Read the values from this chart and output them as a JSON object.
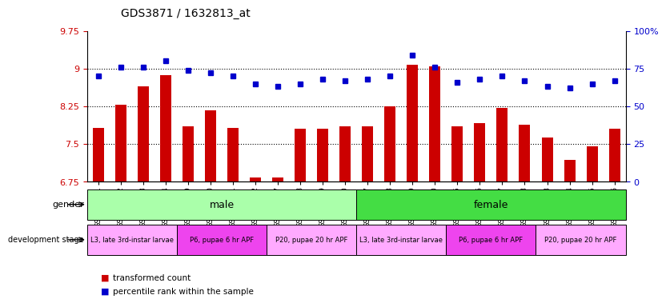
{
  "title": "GDS3871 / 1632813_at",
  "samples": [
    "GSM572821",
    "GSM572822",
    "GSM572823",
    "GSM572824",
    "GSM572829",
    "GSM572830",
    "GSM572831",
    "GSM572832",
    "GSM572837",
    "GSM572838",
    "GSM572839",
    "GSM572840",
    "GSM572817",
    "GSM572818",
    "GSM572819",
    "GSM572820",
    "GSM572825",
    "GSM572826",
    "GSM572827",
    "GSM572828",
    "GSM572833",
    "GSM572834",
    "GSM572835",
    "GSM572836"
  ],
  "bar_values": [
    7.82,
    8.28,
    8.65,
    8.87,
    7.85,
    8.17,
    7.82,
    6.83,
    6.83,
    7.8,
    7.8,
    7.85,
    7.85,
    8.25,
    9.07,
    9.05,
    7.85,
    7.92,
    8.22,
    7.88,
    7.62,
    7.18,
    7.45,
    7.8
  ],
  "dot_values": [
    70,
    76,
    76,
    80,
    74,
    72,
    70,
    65,
    63,
    65,
    68,
    67,
    68,
    70,
    84,
    76,
    66,
    68,
    70,
    67,
    63,
    62,
    65,
    67
  ],
  "ylim_left": [
    6.75,
    9.75
  ],
  "ylim_right": [
    0,
    100
  ],
  "yticks_left": [
    6.75,
    7.5,
    8.25,
    9.0,
    9.75
  ],
  "ytick_labels_left": [
    "6.75",
    "7.5",
    "8.25",
    "9",
    "9.75"
  ],
  "yticks_right": [
    0,
    25,
    50,
    75,
    100
  ],
  "ytick_labels_right": [
    "0",
    "25",
    "50",
    "75",
    "100%"
  ],
  "bar_color": "#cc0000",
  "dot_color": "#0000cc",
  "gender_regions": [
    {
      "label": "male",
      "start": 0,
      "end": 12,
      "color": "#aaffaa"
    },
    {
      "label": "female",
      "start": 12,
      "end": 24,
      "color": "#44dd44"
    }
  ],
  "dev_stage_regions": [
    {
      "label": "L3, late 3rd-instar larvae",
      "start": 0,
      "end": 4,
      "color": "#ffaaff"
    },
    {
      "label": "P6, pupae 6 hr APF",
      "start": 4,
      "end": 8,
      "color": "#ee44ee"
    },
    {
      "label": "P20, pupae 20 hr APF",
      "start": 8,
      "end": 12,
      "color": "#ffaaff"
    },
    {
      "label": "L3, late 3rd-instar larvae",
      "start": 12,
      "end": 16,
      "color": "#ffaaff"
    },
    {
      "label": "P6, pupae 6 hr APF",
      "start": 16,
      "end": 20,
      "color": "#ee44ee"
    },
    {
      "label": "P20, pupae 20 hr APF",
      "start": 20,
      "end": 24,
      "color": "#ffaaff"
    }
  ],
  "legend_items": [
    {
      "label": "transformed count",
      "color": "#cc0000"
    },
    {
      "label": "percentile rank within the sample",
      "color": "#0000cc"
    }
  ],
  "background_color": "#ffffff",
  "ax_facecolor": "#ffffff"
}
